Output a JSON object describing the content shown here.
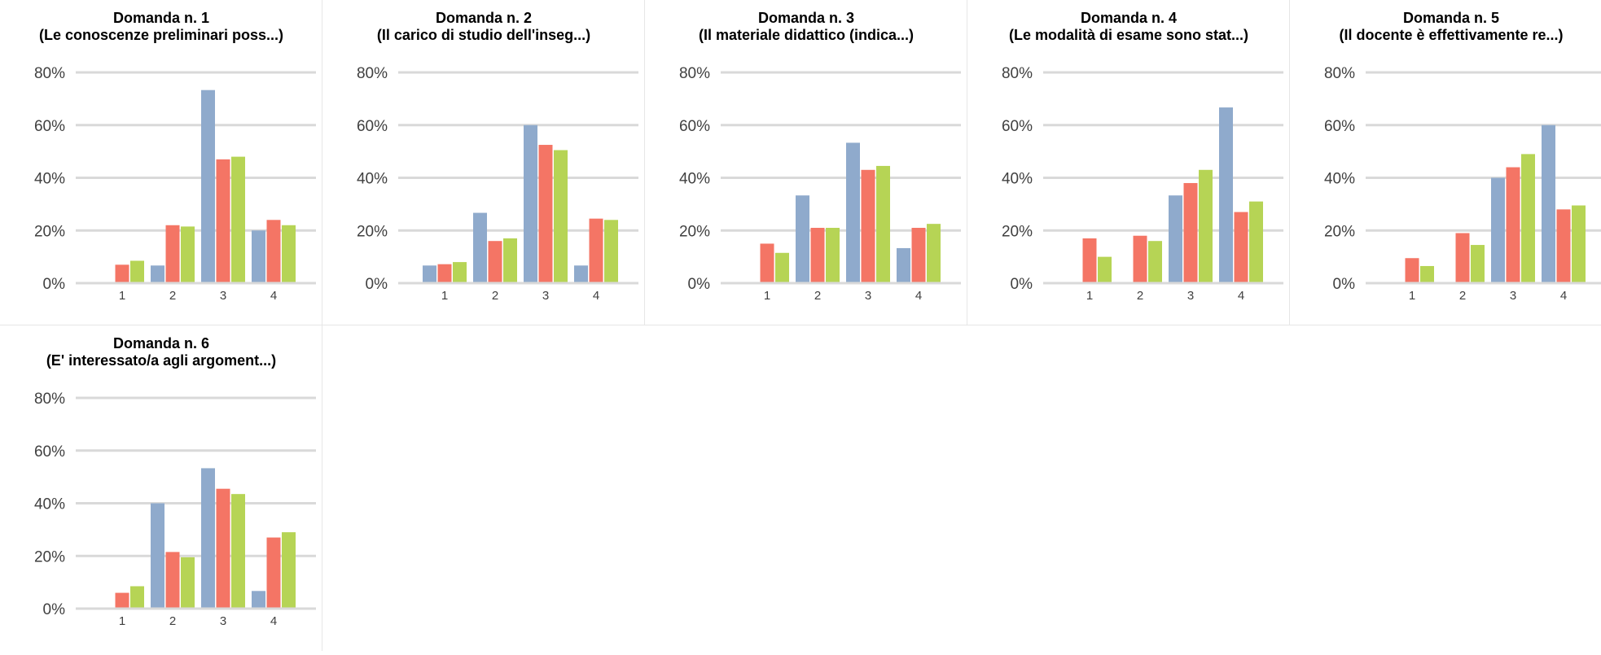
{
  "chart_data": [
    {
      "type": "bar",
      "title": "Domanda n. 1",
      "subtitle": "(Le conoscenze preliminari poss...)",
      "categories": [
        "1",
        "2",
        "3",
        "4"
      ],
      "series": [
        {
          "color": "#8faacc",
          "values": [
            0,
            6.7,
            73.3,
            20
          ]
        },
        {
          "color": "#f47565",
          "values": [
            7,
            22,
            47,
            24
          ]
        },
        {
          "color": "#b6d455",
          "values": [
            8.5,
            21.5,
            48,
            22
          ]
        }
      ],
      "ylim": [
        0,
        80
      ],
      "yticks": [
        "0%",
        "20%",
        "40%",
        "60%",
        "80%"
      ],
      "grid": true
    },
    {
      "type": "bar",
      "title": "Domanda n. 2",
      "subtitle": "(Il carico di studio dell'inseg...)",
      "categories": [
        "1",
        "2",
        "3",
        "4"
      ],
      "series": [
        {
          "color": "#8faacc",
          "values": [
            6.7,
            26.7,
            60,
            6.7
          ]
        },
        {
          "color": "#f47565",
          "values": [
            7.2,
            16,
            52.5,
            24.5
          ]
        },
        {
          "color": "#b6d455",
          "values": [
            8,
            17,
            50.5,
            24
          ]
        }
      ],
      "ylim": [
        0,
        80
      ],
      "yticks": [
        "0%",
        "20%",
        "40%",
        "60%",
        "80%"
      ],
      "grid": true
    },
    {
      "type": "bar",
      "title": "Domanda n. 3",
      "subtitle": "(Il materiale didattico (indica...)",
      "categories": [
        "1",
        "2",
        "3",
        "4"
      ],
      "series": [
        {
          "color": "#8faacc",
          "values": [
            0,
            33.3,
            53.3,
            13.3
          ]
        },
        {
          "color": "#f47565",
          "values": [
            15,
            21,
            43,
            21
          ]
        },
        {
          "color": "#b6d455",
          "values": [
            11.5,
            21,
            44.5,
            22.5
          ]
        }
      ],
      "ylim": [
        0,
        80
      ],
      "yticks": [
        "0%",
        "20%",
        "40%",
        "60%",
        "80%"
      ],
      "grid": true
    },
    {
      "type": "bar",
      "title": "Domanda n. 4",
      "subtitle": "(Le modalità di esame sono stat...)",
      "categories": [
        "1",
        "2",
        "3",
        "4"
      ],
      "series": [
        {
          "color": "#8faacc",
          "values": [
            0,
            0,
            33.3,
            66.7
          ]
        },
        {
          "color": "#f47565",
          "values": [
            17,
            18,
            38,
            27
          ]
        },
        {
          "color": "#b6d455",
          "values": [
            10,
            16,
            43,
            31
          ]
        }
      ],
      "ylim": [
        0,
        80
      ],
      "yticks": [
        "0%",
        "20%",
        "40%",
        "60%",
        "80%"
      ],
      "grid": true
    },
    {
      "type": "bar",
      "title": "Domanda n. 5",
      "subtitle": "(Il docente è effettivamente re...)",
      "categories": [
        "1",
        "2",
        "3",
        "4"
      ],
      "series": [
        {
          "color": "#8faacc",
          "values": [
            0,
            0,
            40,
            60
          ]
        },
        {
          "color": "#f47565",
          "values": [
            9.5,
            19,
            44,
            28
          ]
        },
        {
          "color": "#b6d455",
          "values": [
            6.5,
            14.5,
            49,
            29.5
          ]
        }
      ],
      "ylim": [
        0,
        80
      ],
      "yticks": [
        "0%",
        "20%",
        "40%",
        "60%",
        "80%"
      ],
      "grid": true
    },
    {
      "type": "bar",
      "title": "Domanda n. 6",
      "subtitle": "(E' interessato/a agli argoment...)",
      "categories": [
        "1",
        "2",
        "3",
        "4"
      ],
      "series": [
        {
          "color": "#8faacc",
          "values": [
            0,
            40,
            53.3,
            6.7
          ]
        },
        {
          "color": "#f47565",
          "values": [
            6,
            21.5,
            45.5,
            27
          ]
        },
        {
          "color": "#b6d455",
          "values": [
            8.5,
            19.5,
            43.5,
            29
          ]
        }
      ],
      "ylim": [
        0,
        80
      ],
      "yticks": [
        "0%",
        "20%",
        "40%",
        "60%",
        "80%"
      ],
      "grid": true
    }
  ]
}
